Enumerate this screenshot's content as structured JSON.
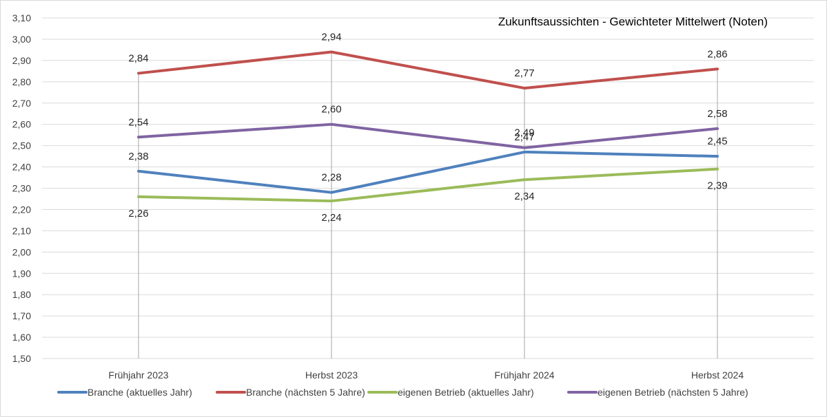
{
  "chart_data": {
    "type": "line",
    "title": "Zukunftsaussichten - Gewichteter Mittelwert (Noten)",
    "xlabel": "",
    "ylabel": "",
    "categories": [
      "Frühjahr 2023",
      "Herbst 2023",
      "Frühjahr 2024",
      "Herbst 2024"
    ],
    "ylim": [
      1.5,
      3.1
    ],
    "ytick_step": 0.1,
    "ytick_labels": [
      "1,50",
      "1,60",
      "1,70",
      "1,80",
      "1,90",
      "2,00",
      "2,10",
      "2,20",
      "2,30",
      "2,40",
      "2,50",
      "2,60",
      "2,70",
      "2,80",
      "2,90",
      "3,00",
      "3,10"
    ],
    "grid": "horizontal",
    "legend_position": "bottom",
    "series": [
      {
        "name": "Branche (aktuelles Jahr)",
        "color": "#4f81bd",
        "values": [
          2.38,
          2.28,
          2.47,
          2.45
        ],
        "labels": [
          "2,38",
          "2,28",
          "2,47",
          "2,45"
        ],
        "label_side": [
          "above",
          "above",
          "above",
          "above"
        ]
      },
      {
        "name": "Branche (nächsten 5 Jahre)",
        "color": "#c0504d",
        "values": [
          2.84,
          2.94,
          2.77,
          2.86
        ],
        "labels": [
          "2,84",
          "2,94",
          "2,77",
          "2,86"
        ],
        "label_side": [
          "above",
          "above",
          "above",
          "above"
        ]
      },
      {
        "name": "eigenen Betrieb (aktuelles Jahr)",
        "color": "#9bbb59",
        "values": [
          2.26,
          2.24,
          2.34,
          2.39
        ],
        "labels": [
          "2,26",
          "2,24",
          "2,34",
          "2,39"
        ],
        "label_side": [
          "below",
          "below",
          "below",
          "below"
        ]
      },
      {
        "name": "eigenen Betrieb (nächsten 5 Jahre)",
        "color": "#8064a2",
        "values": [
          2.54,
          2.6,
          2.49,
          2.58
        ],
        "labels": [
          "2,54",
          "2,60",
          "2,49",
          "2,58"
        ],
        "label_side": [
          "above",
          "above",
          "above",
          "above"
        ]
      }
    ]
  }
}
